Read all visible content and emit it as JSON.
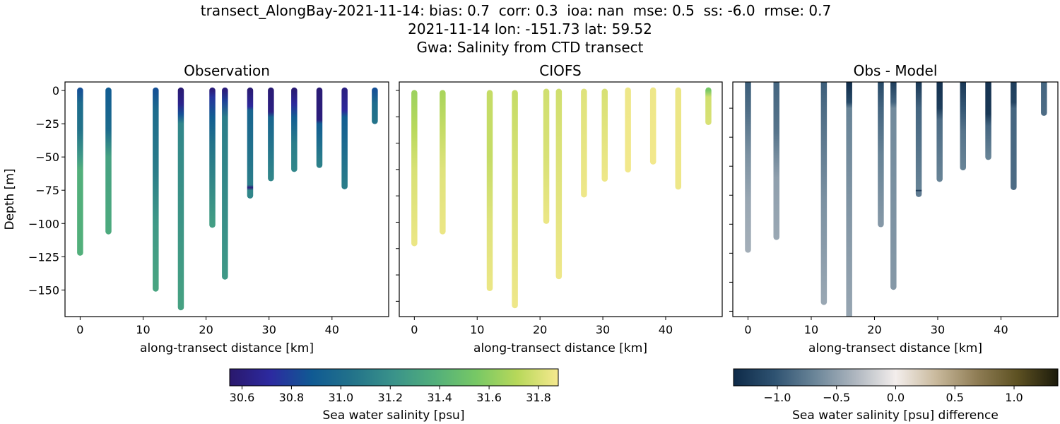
{
  "suptitle": [
    "transect_AlongBay-2021-11-14: bias: 0.7  corr: 0.3  ioa: nan  mse: 0.5  ss: -6.0  rmse: 0.7",
    "2021-11-14 lon: -151.73 lat: 59.52",
    "Gwa: Salinity from CTD transect"
  ],
  "chart_data": [
    {
      "type": "scatter",
      "title": "Observation",
      "xlabel": "along-transect distance [km]",
      "ylabel": "Depth [m]",
      "xlim": [
        -2.4,
        49
      ],
      "ylim": [
        -170,
        6.4
      ],
      "xticks": [
        0,
        10,
        20,
        30,
        40
      ],
      "yticks": [
        0,
        -25,
        -50,
        -75,
        -100,
        -125,
        -150
      ],
      "ytick_labels_shown": true,
      "colormap": "salinity",
      "profiles": [
        {
          "x": 0,
          "points": [
            [
              0,
              30.85
            ],
            [
              -10,
              31.0
            ],
            [
              -30,
              31.05
            ],
            [
              -50,
              31.25
            ],
            [
              -60,
              31.38
            ],
            [
              -122,
              31.38
            ]
          ]
        },
        {
          "x": 4.5,
          "points": [
            [
              0,
              30.9
            ],
            [
              -30,
              31.0
            ],
            [
              -50,
              31.3
            ],
            [
              -106,
              31.35
            ]
          ]
        },
        {
          "x": 12,
          "points": [
            [
              0,
              30.85
            ],
            [
              -15,
              31.0
            ],
            [
              -60,
              31.1
            ],
            [
              -100,
              31.25
            ],
            [
              -149,
              31.32
            ]
          ]
        },
        {
          "x": 16,
          "points": [
            [
              0,
              30.58
            ],
            [
              -10,
              30.65
            ],
            [
              -18,
              30.85
            ],
            [
              -25,
              31.15
            ],
            [
              -163,
              31.3
            ]
          ]
        },
        {
          "x": 21,
          "points": [
            [
              0,
              30.6
            ],
            [
              -5,
              30.75
            ],
            [
              -20,
              30.9
            ],
            [
              -40,
              31.05
            ],
            [
              -101,
              31.28
            ]
          ]
        },
        {
          "x": 23,
          "points": [
            [
              0,
              30.6
            ],
            [
              -8,
              30.8
            ],
            [
              -20,
              31.1
            ],
            [
              -140,
              31.25
            ]
          ]
        },
        {
          "x": 27,
          "points": [
            [
              0,
              30.58
            ],
            [
              -12,
              30.7
            ],
            [
              -15,
              30.95
            ],
            [
              -71,
              31.1
            ],
            [
              -73,
              30.6
            ],
            [
              -75,
              31.15
            ],
            [
              -79,
              31.15
            ]
          ]
        },
        {
          "x": 30.3,
          "points": [
            [
              0,
              30.58
            ],
            [
              -16,
              30.62
            ],
            [
              -20,
              30.95
            ],
            [
              -66,
              31.15
            ]
          ]
        },
        {
          "x": 34,
          "points": [
            [
              0,
              30.58
            ],
            [
              -10,
              30.7
            ],
            [
              -20,
              30.9
            ],
            [
              -40,
              31.1
            ],
            [
              -59,
              31.15
            ]
          ]
        },
        {
          "x": 38,
          "points": [
            [
              0,
              30.58
            ],
            [
              -22,
              30.6
            ],
            [
              -25,
              30.9
            ],
            [
              -56,
              31.12
            ]
          ]
        },
        {
          "x": 42,
          "points": [
            [
              0,
              30.62
            ],
            [
              -15,
              30.7
            ],
            [
              -20,
              30.9
            ],
            [
              -72,
              31.1
            ]
          ]
        },
        {
          "x": 46.8,
          "points": [
            [
              0,
              30.85
            ],
            [
              -10,
              31.0
            ],
            [
              -23,
              31.05
            ]
          ]
        }
      ]
    },
    {
      "type": "scatter",
      "title": "CIOFS",
      "xlabel": "along-transect distance [km]",
      "ylabel": "",
      "xlim": [
        -2.4,
        49
      ],
      "ylim": [
        -171.6,
        6.4
      ],
      "xticks": [
        0,
        10,
        20,
        30,
        40
      ],
      "yticks": [
        0,
        -20,
        -40,
        -60,
        -80,
        -100,
        -120,
        -140,
        -160
      ],
      "ytick_labels_shown": false,
      "colormap": "salinity",
      "profiles": [
        {
          "x": 0,
          "points": [
            [
              -2,
              31.65
            ],
            [
              -30,
              31.72
            ],
            [
              -60,
              31.8
            ],
            [
              -116,
              31.85
            ]
          ]
        },
        {
          "x": 4.5,
          "points": [
            [
              -2,
              31.68
            ],
            [
              -30,
              31.75
            ],
            [
              -60,
              31.82
            ],
            [
              -107,
              31.85
            ]
          ]
        },
        {
          "x": 12,
          "points": [
            [
              -2,
              31.75
            ],
            [
              -50,
              31.75
            ],
            [
              -100,
              31.82
            ],
            [
              -150,
              31.85
            ]
          ]
        },
        {
          "x": 16,
          "points": [
            [
              -2,
              31.75
            ],
            [
              -60,
              31.8
            ],
            [
              -163,
              31.86
            ]
          ]
        },
        {
          "x": 21,
          "points": [
            [
              -1,
              31.78
            ],
            [
              -50,
              31.8
            ],
            [
              -99,
              31.85
            ]
          ]
        },
        {
          "x": 23,
          "points": [
            [
              -1,
              31.78
            ],
            [
              -60,
              31.82
            ],
            [
              -141,
              31.86
            ]
          ]
        },
        {
          "x": 27,
          "points": [
            [
              -1,
              31.82
            ],
            [
              -79,
              31.86
            ]
          ]
        },
        {
          "x": 30.3,
          "points": [
            [
              -1,
              31.8
            ],
            [
              -67,
              31.86
            ]
          ]
        },
        {
          "x": 34,
          "points": [
            [
              0,
              31.86
            ],
            [
              -60,
              31.87
            ]
          ]
        },
        {
          "x": 38,
          "points": [
            [
              0,
              31.86
            ],
            [
              -54,
              31.87
            ]
          ]
        },
        {
          "x": 42,
          "points": [
            [
              0,
              31.85
            ],
            [
              -73,
              31.86
            ]
          ]
        },
        {
          "x": 46.8,
          "points": [
            [
              0,
              31.55
            ],
            [
              -5,
              31.78
            ],
            [
              -24,
              31.8
            ]
          ]
        }
      ]
    },
    {
      "type": "scatter",
      "title": "Obs - Model",
      "xlabel": "along-transect distance [km]",
      "ylabel": "",
      "xlim": [
        -2.4,
        49
      ],
      "ylim": [
        -179.6,
        22.6
      ],
      "xticks": [
        0,
        10,
        20,
        30,
        40
      ],
      "yticks": [
        0,
        -25,
        -50,
        -75,
        -100,
        -125,
        -150,
        -175
      ],
      "ytick_labels_shown": false,
      "colormap": "difference",
      "profiles": [
        {
          "x": 0,
          "points": [
            [
              22,
              -0.95
            ],
            [
              0,
              -0.85
            ],
            [
              -40,
              -0.6
            ],
            [
              -80,
              -0.45
            ],
            [
              -122,
              -0.4
            ]
          ]
        },
        {
          "x": 4.5,
          "points": [
            [
              22,
              -0.9
            ],
            [
              -20,
              -0.8
            ],
            [
              -60,
              -0.5
            ],
            [
              -111,
              -0.45
            ]
          ]
        },
        {
          "x": 12,
          "points": [
            [
              22,
              -0.95
            ],
            [
              0,
              -0.85
            ],
            [
              -80,
              -0.6
            ],
            [
              -167,
              -0.45
            ]
          ]
        },
        {
          "x": 16,
          "points": [
            [
              22,
              -1.35
            ],
            [
              5,
              -1.1
            ],
            [
              0,
              -0.7
            ],
            [
              -100,
              -0.55
            ],
            [
              -190,
              -0.45
            ]
          ]
        },
        {
          "x": 21,
          "points": [
            [
              22,
              -1.1
            ],
            [
              0,
              -0.9
            ],
            [
              -40,
              -0.7
            ],
            [
              -100,
              -0.55
            ]
          ]
        },
        {
          "x": 23,
          "points": [
            [
              22,
              -1.2
            ],
            [
              5,
              -0.9
            ],
            [
              0,
              -0.65
            ],
            [
              -154,
              -0.55
            ]
          ]
        },
        {
          "x": 27,
          "points": [
            [
              22,
              -1.25
            ],
            [
              0,
              -0.9
            ],
            [
              -70,
              -0.7
            ],
            [
              -71,
              -1.3
            ],
            [
              -72,
              -0.75
            ],
            [
              -74,
              -0.75
            ]
          ]
        },
        {
          "x": 30.3,
          "points": [
            [
              22,
              -1.3
            ],
            [
              0,
              -1.2
            ],
            [
              -10,
              -0.85
            ],
            [
              -61,
              -0.7
            ]
          ]
        },
        {
          "x": 34,
          "points": [
            [
              22,
              -1.25
            ],
            [
              0,
              -1.0
            ],
            [
              -20,
              -0.8
            ],
            [
              -51,
              -0.7
            ]
          ]
        },
        {
          "x": 38,
          "points": [
            [
              22,
              -1.3
            ],
            [
              -5,
              -1.25
            ],
            [
              -15,
              -0.9
            ],
            [
              -42,
              -0.7
            ]
          ]
        },
        {
          "x": 42,
          "points": [
            [
              22,
              -1.2
            ],
            [
              5,
              -1.15
            ],
            [
              0,
              -0.9
            ],
            [
              -68,
              -0.85
            ]
          ]
        },
        {
          "x": 46.8,
          "points": [
            [
              22,
              -0.9
            ],
            [
              -4,
              -0.85
            ]
          ]
        }
      ]
    }
  ],
  "colorbars": [
    {
      "label": "Sea water salinity [psu]",
      "range": [
        30.55,
        31.88
      ],
      "ticks": [
        "30.6",
        "30.8",
        "31.0",
        "31.2",
        "31.4",
        "31.6",
        "31.8"
      ],
      "colors": [
        "#2a186c",
        "#2c2aa0",
        "#105a93",
        "#23738a",
        "#3a938a",
        "#52af7b",
        "#77c865",
        "#b7d85a",
        "#f6e98f"
      ]
    },
    {
      "label": "Sea water salinity [psu] difference",
      "range": [
        -1.37,
        1.37
      ],
      "ticks": [
        "−1.0",
        "−0.5",
        "0.0",
        "0.5",
        "1.0"
      ],
      "tick_values": [
        -1.0,
        -0.5,
        0.0,
        0.5,
        1.0
      ],
      "colors": [
        "#0e2a48",
        "#2e5271",
        "#6a8598",
        "#aeb6bf",
        "#f3eeec",
        "#c9b99c",
        "#8f7d55",
        "#5d5122",
        "#1c1b0b"
      ]
    }
  ]
}
